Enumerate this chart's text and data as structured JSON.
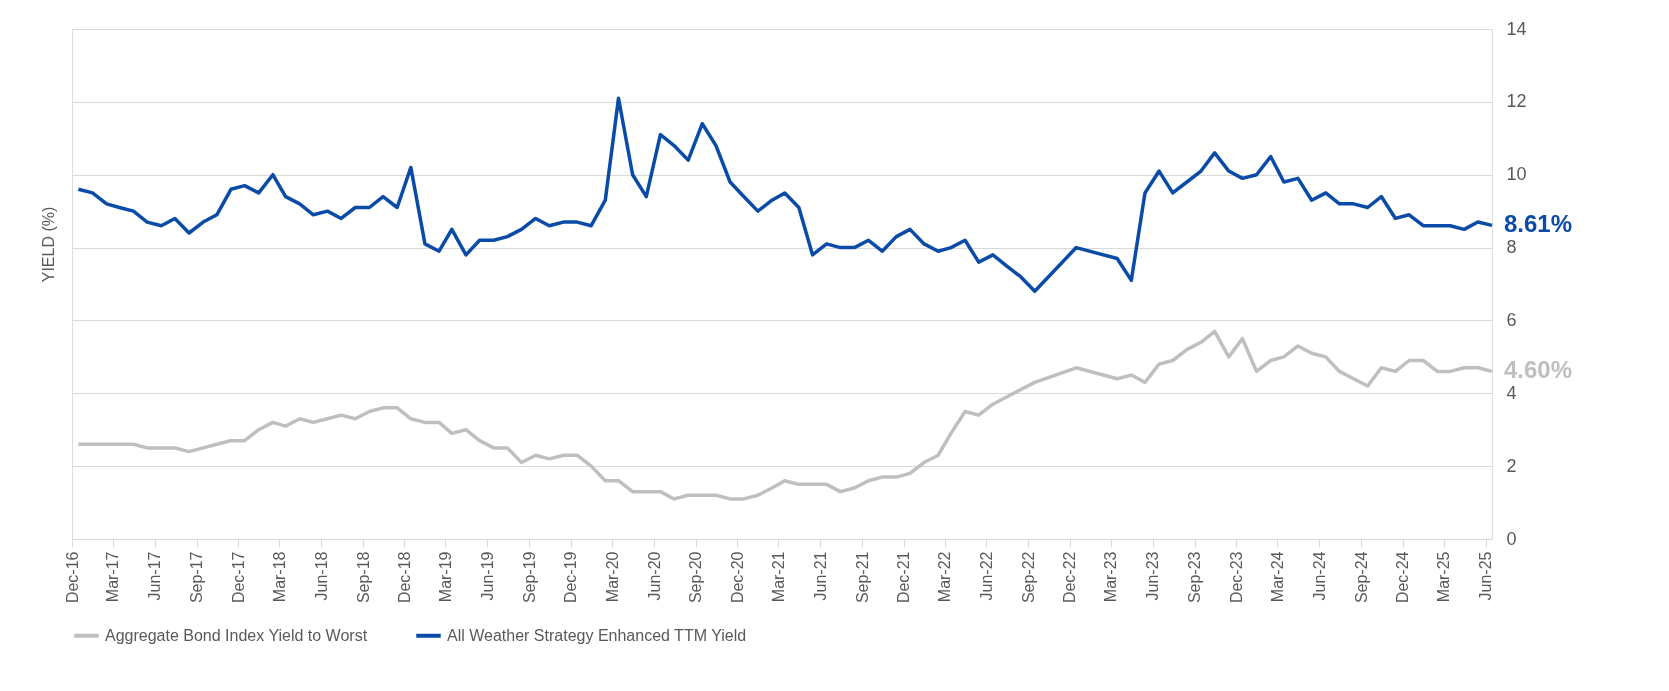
{
  "chart_data": {
    "type": "line",
    "ylabel": "YIELD (%)",
    "x": [
      "2016-12-15",
      "2017-01-15",
      "2017-02-15",
      "2017-03-15",
      "2017-04-15",
      "2017-05-15",
      "2017-06-15",
      "2017-07-15",
      "2017-08-15",
      "2017-09-15",
      "2017-10-15",
      "2017-11-15",
      "2017-12-15",
      "2018-01-15",
      "2018-02-15",
      "2018-03-15",
      "2018-04-15",
      "2018-05-15",
      "2018-06-15",
      "2018-07-15",
      "2018-08-15",
      "2018-09-15",
      "2018-10-15",
      "2018-11-15",
      "2018-12-15",
      "2019-01-15",
      "2019-02-15",
      "2019-03-15",
      "2019-04-15",
      "2019-05-15",
      "2019-06-15",
      "2019-07-15",
      "2019-08-15",
      "2019-09-15",
      "2019-10-15",
      "2019-11-15",
      "2019-12-15",
      "2020-01-15",
      "2020-02-15",
      "2020-03-15",
      "2020-04-15",
      "2020-05-15",
      "2020-06-15",
      "2020-07-15",
      "2020-08-15",
      "2020-09-15",
      "2020-10-15",
      "2020-11-15",
      "2020-12-15",
      "2021-01-15",
      "2021-02-15",
      "2021-03-15",
      "2021-04-15",
      "2021-05-15",
      "2021-06-15",
      "2021-07-15",
      "2021-08-15",
      "2021-09-15",
      "2021-10-15",
      "2021-11-15",
      "2021-12-15",
      "2022-01-15",
      "2022-02-15",
      "2022-03-15",
      "2022-04-15",
      "2022-05-15",
      "2022-06-15",
      "2022-07-15",
      "2022-08-15",
      "2022-09-15",
      "2022-12-15",
      "2023-03-15",
      "2023-04-15",
      "2023-05-15",
      "2023-06-15",
      "2023-07-15",
      "2023-08-15",
      "2023-09-15",
      "2023-10-15",
      "2023-11-15",
      "2023-12-15",
      "2024-01-15",
      "2024-02-15",
      "2024-03-15",
      "2024-04-15",
      "2024-05-15",
      "2024-06-15",
      "2024-07-15",
      "2024-08-15",
      "2024-09-15",
      "2024-10-15",
      "2024-11-15",
      "2024-12-15",
      "2025-01-15",
      "2025-02-15",
      "2025-03-15",
      "2025-04-15",
      "2025-05-15",
      "2025-06-15"
    ],
    "series": [
      {
        "name": "Aggregate Bond Index Yield to Worst",
        "color": "#bfbfbf",
        "values": [
          2.6,
          2.6,
          2.6,
          2.6,
          2.6,
          2.5,
          2.5,
          2.5,
          2.4,
          2.5,
          2.6,
          2.7,
          2.7,
          3.0,
          3.2,
          3.1,
          3.3,
          3.2,
          3.3,
          3.4,
          3.3,
          3.5,
          3.6,
          3.6,
          3.3,
          3.2,
          3.2,
          2.9,
          3.0,
          2.7,
          2.5,
          2.5,
          2.1,
          2.3,
          2.2,
          2.3,
          2.3,
          2.0,
          1.6,
          1.6,
          1.3,
          1.3,
          1.3,
          1.1,
          1.2,
          1.2,
          1.2,
          1.1,
          1.1,
          1.2,
          1.4,
          1.6,
          1.5,
          1.5,
          1.5,
          1.3,
          1.4,
          1.6,
          1.7,
          1.7,
          1.8,
          2.1,
          2.3,
          2.9,
          3.5,
          3.4,
          3.7,
          3.9,
          4.1,
          4.3,
          4.7,
          4.4,
          4.5,
          4.3,
          4.8,
          4.9,
          5.2,
          5.4,
          5.7,
          5.0,
          5.5,
          4.6,
          4.9,
          5.0,
          5.3,
          5.1,
          5.0,
          4.6,
          4.4,
          4.2,
          4.7,
          4.6,
          4.9,
          4.9,
          4.6,
          4.6,
          4.7,
          4.7,
          4.6
        ],
        "value_labels": [
          null,
          null,
          null,
          null,
          null,
          null,
          null,
          null,
          null,
          null,
          null,
          null,
          null,
          null,
          null,
          null,
          null,
          null,
          null,
          null,
          null,
          null,
          null,
          null,
          null,
          null,
          null,
          null,
          null,
          null,
          null,
          null,
          null,
          null,
          null,
          null,
          null,
          null,
          null,
          null,
          null,
          null,
          null,
          null,
          null,
          null,
          null,
          null,
          null,
          null,
          null,
          null,
          null,
          null,
          null,
          null,
          null,
          null,
          null,
          null,
          null,
          null,
          null,
          null,
          null,
          null,
          null,
          null,
          null,
          null,
          null,
          null,
          null,
          null,
          null,
          null,
          null,
          null,
          null,
          null,
          null,
          null,
          null,
          null,
          null,
          null,
          null,
          null,
          null,
          null,
          null,
          null,
          null,
          null,
          null,
          null,
          null,
          null,
          "4.60%"
        ]
      },
      {
        "name": "All Weather Strategy Enhanced TTM Yield",
        "color": "#0a4ba8",
        "values": [
          9.6,
          9.5,
          9.2,
          9.1,
          9.0,
          8.7,
          8.6,
          8.8,
          8.4,
          8.7,
          8.9,
          9.6,
          9.7,
          9.5,
          10.0,
          9.4,
          9.2,
          8.9,
          9.0,
          8.8,
          9.1,
          9.1,
          9.4,
          9.1,
          10.2,
          8.1,
          7.9,
          8.5,
          7.8,
          8.2,
          8.2,
          8.3,
          8.5,
          8.8,
          8.6,
          8.7,
          8.7,
          8.6,
          9.3,
          12.1,
          10.0,
          9.4,
          11.1,
          10.8,
          10.4,
          11.4,
          10.8,
          9.8,
          9.4,
          9.0,
          9.3,
          9.5,
          9.1,
          7.8,
          8.1,
          8.0,
          8.0,
          8.2,
          7.9,
          8.3,
          8.5,
          8.1,
          7.9,
          8.0,
          8.2,
          7.6,
          7.8,
          7.5,
          7.2,
          6.8,
          8.0,
          7.7,
          7.1,
          9.5,
          10.1,
          9.5,
          9.8,
          10.1,
          10.6,
          10.1,
          9.9,
          10.0,
          10.5,
          9.8,
          9.9,
          9.3,
          9.5,
          9.2,
          9.2,
          9.1,
          9.4,
          8.8,
          8.9,
          8.6,
          8.6,
          8.6,
          8.5,
          8.7,
          8.61
        ],
        "value_labels": [
          null,
          null,
          null,
          null,
          null,
          null,
          null,
          null,
          null,
          null,
          null,
          null,
          null,
          null,
          null,
          null,
          null,
          null,
          null,
          null,
          null,
          null,
          null,
          null,
          null,
          null,
          null,
          null,
          null,
          null,
          null,
          null,
          null,
          null,
          null,
          null,
          null,
          null,
          null,
          null,
          null,
          null,
          null,
          null,
          null,
          null,
          null,
          null,
          null,
          null,
          null,
          null,
          null,
          null,
          null,
          null,
          null,
          null,
          null,
          null,
          null,
          null,
          null,
          null,
          null,
          null,
          null,
          null,
          null,
          null,
          null,
          null,
          null,
          null,
          null,
          null,
          null,
          null,
          null,
          null,
          null,
          null,
          null,
          null,
          null,
          null,
          null,
          null,
          null,
          null,
          null,
          null,
          null,
          null,
          null,
          null,
          null,
          null,
          "8.61%"
        ]
      }
    ],
    "xlim": [
      "2016-12-01",
      "2025-06-15"
    ],
    "xticks": [
      {
        "value": "2016-12-01",
        "label": "Dec-16"
      },
      {
        "value": "2017-03-01",
        "label": "Mar-17"
      },
      {
        "value": "2017-06-01",
        "label": "Jun-17"
      },
      {
        "value": "2017-09-01",
        "label": "Sep-17"
      },
      {
        "value": "2017-12-01",
        "label": "Dec-17"
      },
      {
        "value": "2018-03-01",
        "label": "Mar-18"
      },
      {
        "value": "2018-06-01",
        "label": "Jun-18"
      },
      {
        "value": "2018-09-01",
        "label": "Sep-18"
      },
      {
        "value": "2018-12-01",
        "label": "Dec-18"
      },
      {
        "value": "2019-03-01",
        "label": "Mar-19"
      },
      {
        "value": "2019-06-01",
        "label": "Jun-19"
      },
      {
        "value": "2019-09-01",
        "label": "Sep-19"
      },
      {
        "value": "2019-12-01",
        "label": "Dec-19"
      },
      {
        "value": "2020-03-01",
        "label": "Mar-20"
      },
      {
        "value": "2020-06-01",
        "label": "Jun-20"
      },
      {
        "value": "2020-09-01",
        "label": "Sep-20"
      },
      {
        "value": "2020-12-01",
        "label": "Dec-20"
      },
      {
        "value": "2021-03-01",
        "label": "Mar-21"
      },
      {
        "value": "2021-06-01",
        "label": "Jun-21"
      },
      {
        "value": "2021-09-01",
        "label": "Sep-21"
      },
      {
        "value": "2021-12-01",
        "label": "Dec-21"
      },
      {
        "value": "2022-03-01",
        "label": "Mar-22"
      },
      {
        "value": "2022-06-01",
        "label": "Jun-22"
      },
      {
        "value": "2022-09-01",
        "label": "Sep-22"
      },
      {
        "value": "2022-12-01",
        "label": "Dec-22"
      },
      {
        "value": "2023-03-01",
        "label": "Mar-23"
      },
      {
        "value": "2023-06-01",
        "label": "Jun-23"
      },
      {
        "value": "2023-09-01",
        "label": "Sep-23"
      },
      {
        "value": "2023-12-01",
        "label": "Dec-23"
      },
      {
        "value": "2024-03-01",
        "label": "Mar-24"
      },
      {
        "value": "2024-06-01",
        "label": "Jun-24"
      },
      {
        "value": "2024-09-01",
        "label": "Sep-24"
      },
      {
        "value": "2024-12-01",
        "label": "Dec-24"
      },
      {
        "value": "2025-03-01",
        "label": "Mar-25"
      },
      {
        "value": "2025-06-01",
        "label": "Jun-25"
      }
    ],
    "ylim": [
      0,
      14
    ],
    "yticks": [
      0,
      2,
      4,
      6,
      8,
      10,
      12,
      14
    ],
    "grid": "y",
    "legend": "bottom",
    "line_style": "solid",
    "marker": "none"
  }
}
